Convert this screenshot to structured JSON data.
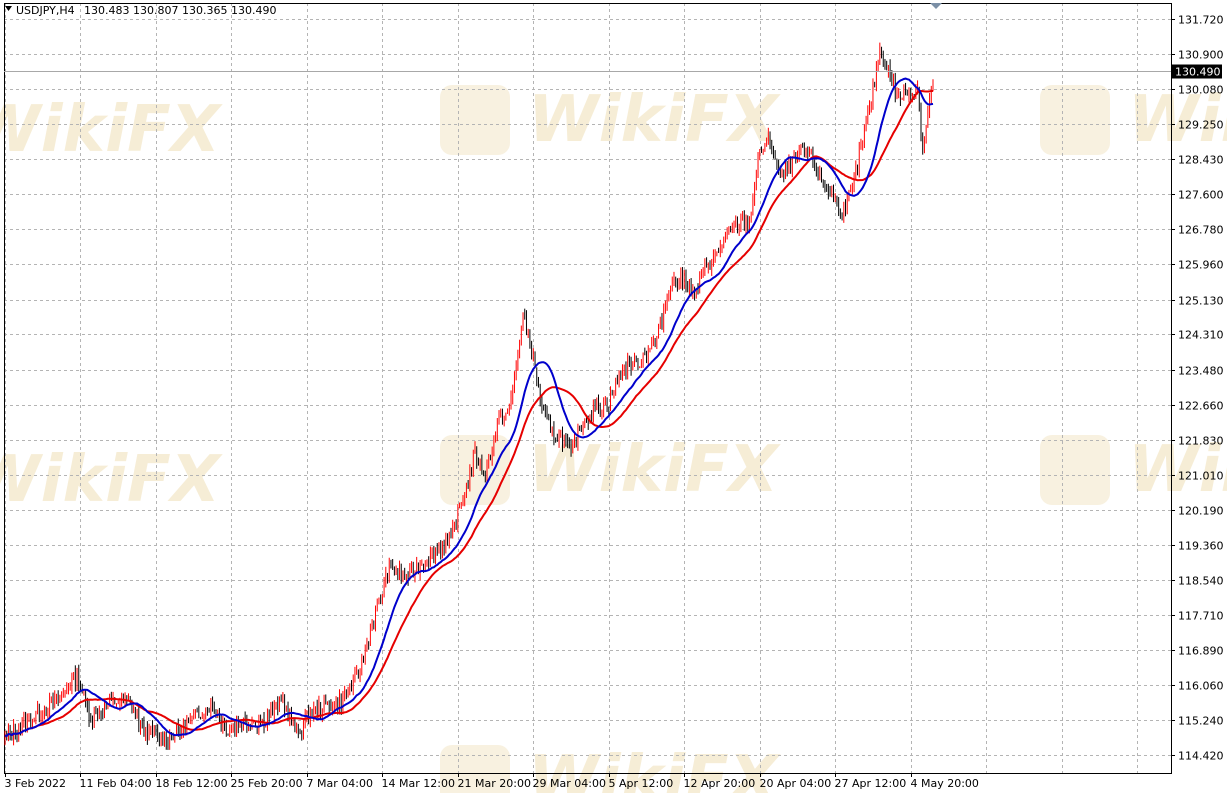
{
  "header": {
    "symbol": "USDJPY,H4",
    "ohlc_text": "130.483 130.807 130.365 130.490",
    "menu_icon": "triangle-down-icon"
  },
  "watermark": {
    "text": "WikiFX"
  },
  "colors": {
    "background": "#ffffff",
    "grid": "#b4b4b4",
    "axis": "#000000",
    "bull_candle": "#ff0000",
    "bear_candle": "#000000",
    "ma_fast": "#0000cc",
    "ma_slow": "#e60000",
    "price_marker_bg": "#000000",
    "price_marker_text": "#ffffff",
    "watermark": "#f3e6c6"
  },
  "chart_data": {
    "type": "line",
    "title": "USDJPY,H4",
    "ylim": [
      114.0,
      132.1
    ],
    "grid": true,
    "current_price": 130.49,
    "y_ticks": [
      "131.720",
      "130.900",
      "130.080",
      "129.250",
      "128.430",
      "127.600",
      "126.780",
      "125.960",
      "125.130",
      "124.310",
      "123.480",
      "122.660",
      "121.830",
      "121.010",
      "120.190",
      "119.360",
      "118.540",
      "117.710",
      "116.890",
      "116.060",
      "115.240",
      "114.420"
    ],
    "x_tick_labels": [
      "3 Feb 2022",
      "11 Feb 04:00",
      "18 Feb 12:00",
      "25 Feb 20:00",
      "7 Mar 04:00",
      "14 Mar 12:00",
      "21 Mar 20:00",
      "29 Mar 04:00",
      "5 Apr 12:00",
      "12 Apr 20:00",
      "20 Apr 04:00",
      "27 Apr 12:00",
      "4 May 20:00"
    ],
    "x_tick_index": [
      0,
      44,
      88,
      132,
      176,
      220,
      264,
      308,
      352,
      396,
      440,
      484,
      528
    ],
    "num_bars": 542,
    "price_path_anchors": [
      [
        0,
        114.8
      ],
      [
        12,
        115.2
      ],
      [
        30,
        115.7
      ],
      [
        38,
        116.1
      ],
      [
        42,
        116.3
      ],
      [
        50,
        115.3
      ],
      [
        60,
        115.6
      ],
      [
        66,
        115.7
      ],
      [
        74,
        115.6
      ],
      [
        80,
        115.0
      ],
      [
        92,
        114.8
      ],
      [
        102,
        115.0
      ],
      [
        110,
        115.3
      ],
      [
        120,
        115.6
      ],
      [
        130,
        115.0
      ],
      [
        138,
        115.2
      ],
      [
        150,
        115.2
      ],
      [
        162,
        115.7
      ],
      [
        170,
        114.9
      ],
      [
        178,
        115.4
      ],
      [
        188,
        115.6
      ],
      [
        196,
        115.7
      ],
      [
        206,
        116.3
      ],
      [
        214,
        117.5
      ],
      [
        224,
        118.8
      ],
      [
        234,
        118.6
      ],
      [
        242,
        118.9
      ],
      [
        250,
        119.2
      ],
      [
        260,
        119.5
      ],
      [
        268,
        120.6
      ],
      [
        274,
        121.5
      ],
      [
        280,
        121.0
      ],
      [
        288,
        122.3
      ],
      [
        294,
        122.5
      ],
      [
        302,
        124.7
      ],
      [
        306,
        124.2
      ],
      [
        312,
        122.8
      ],
      [
        318,
        122.0
      ],
      [
        324,
        121.9
      ],
      [
        330,
        121.5
      ],
      [
        336,
        122.2
      ],
      [
        344,
        122.6
      ],
      [
        352,
        122.7
      ],
      [
        360,
        123.5
      ],
      [
        370,
        123.7
      ],
      [
        380,
        124.2
      ],
      [
        388,
        125.5
      ],
      [
        396,
        125.6
      ],
      [
        402,
        125.2
      ],
      [
        408,
        125.9
      ],
      [
        414,
        126.1
      ],
      [
        420,
        126.6
      ],
      [
        428,
        126.9
      ],
      [
        434,
        127.0
      ],
      [
        440,
        128.6
      ],
      [
        446,
        128.9
      ],
      [
        452,
        128.0
      ],
      [
        458,
        128.3
      ],
      [
        464,
        128.6
      ],
      [
        470,
        128.5
      ],
      [
        476,
        127.9
      ],
      [
        482,
        127.6
      ],
      [
        488,
        127.2
      ],
      [
        494,
        127.7
      ],
      [
        498,
        128.5
      ],
      [
        504,
        129.6
      ],
      [
        510,
        131.0
      ],
      [
        516,
        130.4
      ],
      [
        520,
        129.9
      ],
      [
        528,
        130.0
      ],
      [
        532,
        130.1
      ],
      [
        535,
        128.7
      ],
      [
        538,
        129.5
      ],
      [
        542,
        130.5
      ]
    ],
    "series": [
      {
        "name": "",
        "values": []
      },
      {
        "name": "",
        "values": []
      }
    ]
  }
}
